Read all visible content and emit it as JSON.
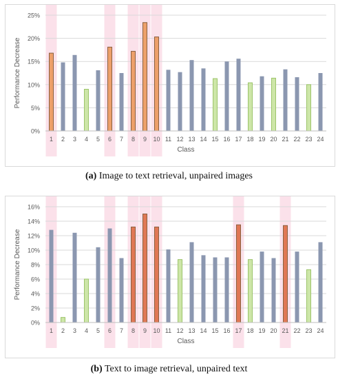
{
  "captions": {
    "a_prefix": "(a)",
    "a_text": " Image to text retrieval, unpaired images",
    "b_prefix": "(b)",
    "b_text": " Text to image retrieval, unpaired text"
  },
  "colors": {
    "default": "#8B97B0",
    "green": "#CDE6A8",
    "green_border": "#9CC46A",
    "orange": "#EDA06A",
    "orange_dark": "#E07854",
    "orange_border": "#8A6040",
    "highlight": "#F8C8D8",
    "grid": "#d9d9d9",
    "axis_text": "#595959"
  },
  "chart_data": [
    {
      "type": "bar",
      "title": "",
      "xlabel": "Class",
      "ylabel": "Performance Decrease",
      "ylim": [
        0,
        25
      ],
      "yticks": [
        0,
        5,
        10,
        15,
        20,
        25
      ],
      "ytick_labels": [
        "0%",
        "5%",
        "10%",
        "15%",
        "20%",
        "25%"
      ],
      "grid": true,
      "categories": [
        "1",
        "2",
        "3",
        "4",
        "5",
        "6",
        "7",
        "8",
        "9",
        "10",
        "11",
        "12",
        "13",
        "14",
        "15",
        "16",
        "17",
        "18",
        "19",
        "20",
        "21",
        "22",
        "23",
        "24"
      ],
      "values": [
        16.8,
        14.8,
        16.4,
        9.0,
        13.1,
        18.1,
        12.5,
        17.2,
        23.4,
        20.3,
        13.2,
        12.7,
        15.3,
        13.5,
        11.3,
        15.0,
        15.6,
        10.4,
        11.8,
        11.4,
        13.3,
        11.6,
        10.0,
        12.5
      ],
      "bar_styles": [
        "orange",
        "default",
        "default",
        "green",
        "default",
        "orange",
        "default",
        "orange",
        "orange",
        "orange",
        "default",
        "default",
        "default",
        "default",
        "green",
        "default",
        "default",
        "green",
        "default",
        "green",
        "default",
        "default",
        "green",
        "default"
      ],
      "highlighted_categories": [
        "1",
        "6",
        "8",
        "9",
        "10"
      ]
    },
    {
      "type": "bar",
      "title": "",
      "xlabel": "Class",
      "ylabel": "Performance Decrease",
      "ylim": [
        0,
        16
      ],
      "yticks": [
        0,
        2,
        4,
        6,
        8,
        10,
        12,
        14,
        16
      ],
      "ytick_labels": [
        "0%",
        "2%",
        "4%",
        "6%",
        "8%",
        "10%",
        "12%",
        "14%",
        "16%"
      ],
      "grid": true,
      "categories": [
        "1",
        "2",
        "3",
        "4",
        "5",
        "6",
        "7",
        "8",
        "9",
        "10",
        "11",
        "12",
        "13",
        "14",
        "15",
        "16",
        "17",
        "18",
        "19",
        "20",
        "21",
        "22",
        "23",
        "24"
      ],
      "values": [
        12.8,
        0.7,
        12.4,
        6.0,
        10.4,
        13.0,
        8.9,
        13.2,
        15.0,
        13.2,
        10.1,
        8.7,
        11.1,
        9.3,
        9.0,
        9.0,
        13.5,
        8.7,
        9.8,
        8.9,
        13.4,
        9.8,
        7.3,
        11.1
      ],
      "bar_styles": [
        "default",
        "green",
        "default",
        "green",
        "default",
        "default",
        "default",
        "orange_dark",
        "orange_dark",
        "orange_dark",
        "default",
        "green",
        "default",
        "default",
        "default",
        "default",
        "orange_dark",
        "green",
        "default",
        "default",
        "orange_dark",
        "default",
        "green",
        "default"
      ],
      "highlighted_categories": [
        "1",
        "6",
        "8",
        "9",
        "10",
        "17",
        "21"
      ]
    }
  ]
}
